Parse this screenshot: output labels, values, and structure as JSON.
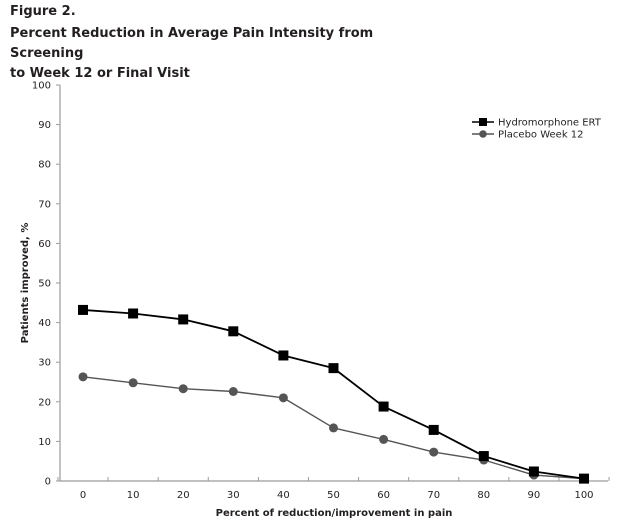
{
  "figure": {
    "label": "Figure 2.",
    "title_line1": "Percent Reduction in Average Pain Intensity from Screening",
    "title_line2": "to Week 12 or Final Visit"
  },
  "chart_data": {
    "type": "line",
    "title": "Percent Reduction in Average Pain Intensity from Screening to Week 12 or Final Visit",
    "xlabel": "Percent of reduction/improvement in pain",
    "ylabel": "Patients improved, %",
    "x": [
      0,
      10,
      20,
      30,
      40,
      50,
      60,
      70,
      80,
      90,
      100
    ],
    "x_tick_labels": [
      "0",
      "10",
      "20",
      "30",
      "40",
      "50",
      "60",
      "70",
      "80",
      "90",
      "100"
    ],
    "y_tick_labels": [
      "0",
      "10",
      "20",
      "30",
      "40",
      "50",
      "60",
      "70",
      "80",
      "90",
      "100"
    ],
    "ylim": [
      0,
      100
    ],
    "grid": false,
    "legend_position": "top-right",
    "series": [
      {
        "name": "Hydromorphone ERT",
        "marker": "square",
        "color": "#000000",
        "values": [
          43.2,
          42.3,
          40.8,
          37.8,
          31.7,
          28.5,
          18.8,
          12.9,
          6.3,
          2.4,
          0.6
        ]
      },
      {
        "name": "Placebo Week 12",
        "marker": "circle",
        "color": "#555555",
        "values": [
          26.3,
          24.8,
          23.3,
          22.6,
          21.0,
          13.4,
          10.5,
          7.3,
          5.3,
          1.5,
          0.6
        ]
      }
    ]
  }
}
